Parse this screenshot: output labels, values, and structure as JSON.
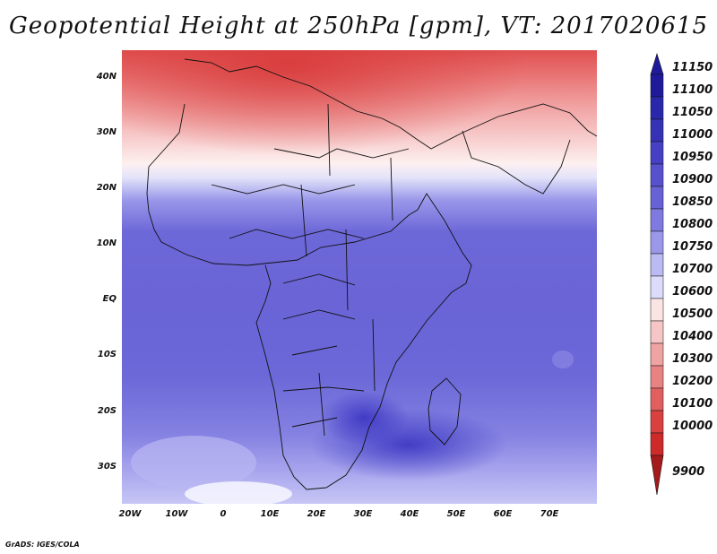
{
  "title": "Geopotential Height at 250hPa [gpm], VT: 2017020615",
  "credit": "GrADS: IGES/COLA",
  "lat_labels": [
    "40N",
    "30N",
    "20N",
    "10N",
    "EQ",
    "10S",
    "20S",
    "30S"
  ],
  "lon_labels": [
    "20W",
    "10W",
    "0",
    "10E",
    "20E",
    "30E",
    "40E",
    "50E",
    "60E",
    "70E"
  ],
  "colorbar": {
    "labels": [
      "11150",
      "11100",
      "11050",
      "11000",
      "10950",
      "10900",
      "10850",
      "10800",
      "10750",
      "10700",
      "10600",
      "10500",
      "10400",
      "10300",
      "10200",
      "10100",
      "10000",
      "9900"
    ],
    "colors": [
      "#1e1a9a",
      "#2a28aa",
      "#3532b6",
      "#4540c4",
      "#5751cd",
      "#6863d4",
      "#7e7ae0",
      "#9b98ea",
      "#bbbaf2",
      "#dcdcfa",
      "#fbe4e4",
      "#f6c6c6",
      "#efa3a3",
      "#e88383",
      "#e06060",
      "#d94141",
      "#cd2a2a",
      "#a51a1a"
    ],
    "top_arrow_color": "#1e1a9a",
    "bottom_arrow_color": "#a51a1a"
  }
}
